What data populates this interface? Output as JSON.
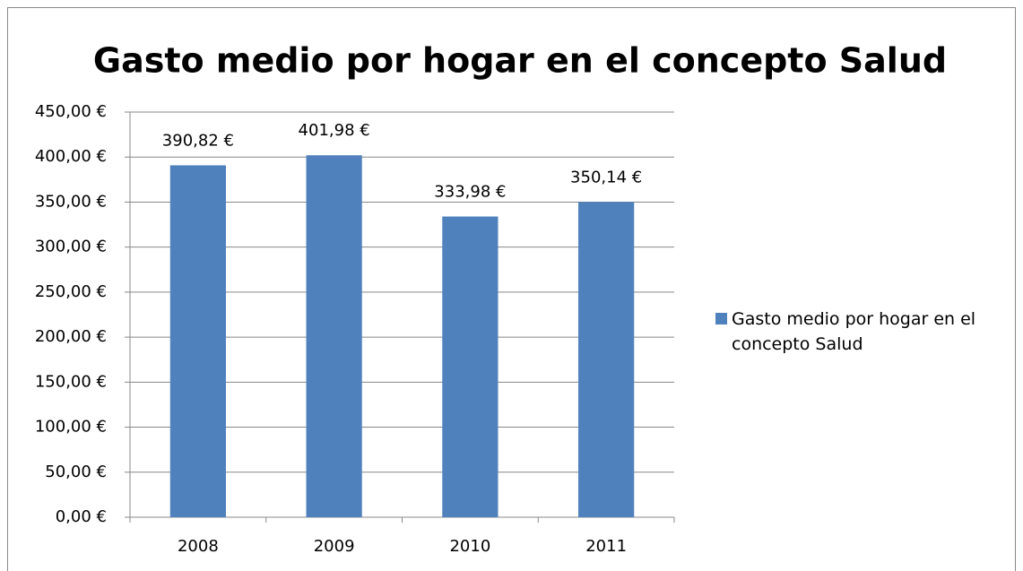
{
  "chart_data": {
    "type": "bar",
    "title": "Gasto medio por hogar en el concepto Salud",
    "categories": [
      "2008",
      "2009",
      "2010",
      "2011"
    ],
    "series": [
      {
        "name": "Gasto medio por hogar en el concepto Salud",
        "color": "#4f81bd",
        "values": [
          390.82,
          401.98,
          333.98,
          350.14
        ],
        "value_labels": [
          "390,82 €",
          "401,98 €",
          "333,98 €",
          "350,14 €"
        ]
      }
    ],
    "ylim": [
      0,
      450
    ],
    "yticks": [
      {
        "value": 0,
        "label": "0,00 €"
      },
      {
        "value": 50,
        "label": "50,00 €"
      },
      {
        "value": 100,
        "label": "100,00 €"
      },
      {
        "value": 150,
        "label": "150,00 €"
      },
      {
        "value": 200,
        "label": "200,00 €"
      },
      {
        "value": 250,
        "label": "250,00 €"
      },
      {
        "value": 300,
        "label": "300,00 €"
      },
      {
        "value": 350,
        "label": "350,00 €"
      },
      {
        "value": 400,
        "label": "400,00 €"
      },
      {
        "value": 450,
        "label": "450,00 €"
      }
    ],
    "grid": true,
    "legend": "right"
  }
}
